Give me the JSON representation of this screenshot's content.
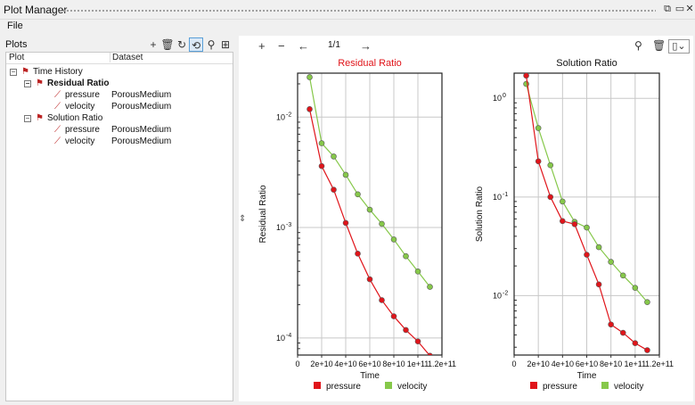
{
  "window": {
    "title": "Plot Manager"
  },
  "menu": {
    "file": "File"
  },
  "left": {
    "header": "Plots",
    "columns": {
      "plot": "Plot",
      "dataset": "Dataset"
    }
  },
  "tree": {
    "root": "Time History",
    "groups": [
      {
        "label": "Residual Ratio",
        "bold": true,
        "items": [
          {
            "label": "pressure",
            "dataset": "PorousMedium"
          },
          {
            "label": "velocity",
            "dataset": "PorousMedium"
          }
        ]
      },
      {
        "label": "Solution Ratio",
        "bold": false,
        "items": [
          {
            "label": "pressure",
            "dataset": "PorousMedium"
          },
          {
            "label": "velocity",
            "dataset": "PorousMedium"
          }
        ]
      }
    ]
  },
  "toolbar": {
    "page_indicator": "1/1"
  },
  "colors": {
    "pressure": "#e0141a",
    "velocity": "#86c84a",
    "title_red": "#e0141a"
  },
  "chart_data": [
    {
      "type": "line",
      "title": "Residual Ratio",
      "xlabel": "Time",
      "ylabel": "Residual Ratio",
      "yscale": "log",
      "xlim": [
        0,
        120000000000.0
      ],
      "ylim": [
        7e-05,
        0.025
      ],
      "xticks": [
        "0",
        "2e+10",
        "4e+10",
        "6e+10",
        "8e+10",
        "1e+11",
        "1.2e+11"
      ],
      "yticks": [
        {
          "value": 0.01,
          "label": "10",
          "exp": "-2"
        },
        {
          "value": 0.001,
          "label": "10",
          "exp": "-3"
        },
        {
          "value": 0.0001,
          "label": "10",
          "exp": "-4"
        }
      ],
      "series": [
        {
          "name": "pressure",
          "x": [
            10000000000.0,
            20000000000.0,
            30000000000.0,
            40000000000.0,
            50000000000.0,
            60000000000.0,
            70000000000.0,
            80000000000.0,
            90000000000.0,
            100000000000.0,
            110000000000.0
          ],
          "y": [
            0.0118,
            0.0036,
            0.0022,
            0.0011,
            0.00058,
            0.00034,
            0.00022,
            0.000157,
            0.000118,
            9.3e-05,
            6.9e-05
          ]
        },
        {
          "name": "velocity",
          "x": [
            10000000000.0,
            20000000000.0,
            30000000000.0,
            40000000000.0,
            50000000000.0,
            60000000000.0,
            70000000000.0,
            80000000000.0,
            90000000000.0,
            100000000000.0,
            110000000000.0
          ],
          "y": [
            0.023,
            0.0058,
            0.0044,
            0.003,
            0.002,
            0.00145,
            0.00108,
            0.00078,
            0.00055,
            0.0004,
            0.00029
          ]
        }
      ],
      "legend": "bottom"
    },
    {
      "type": "line",
      "title": "Solution Ratio",
      "xlabel": "Time",
      "ylabel": "Solution Ratio",
      "yscale": "log",
      "xlim": [
        0,
        120000000000.0
      ],
      "ylim": [
        0.0025,
        1.8
      ],
      "xticks": [
        "0",
        "2e+10",
        "4e+10",
        "6e+10",
        "8e+10",
        "1e+11",
        "1.2e+11"
      ],
      "yticks": [
        {
          "value": 1,
          "label": "10",
          "exp": "0"
        },
        {
          "value": 0.1,
          "label": "10",
          "exp": "-1"
        },
        {
          "value": 0.01,
          "label": "10",
          "exp": "-2"
        }
      ],
      "series": [
        {
          "name": "pressure",
          "x": [
            10000000000.0,
            20000000000.0,
            30000000000.0,
            40000000000.0,
            50000000000.0,
            60000000000.0,
            70000000000.0,
            80000000000.0,
            90000000000.0,
            100000000000.0,
            110000000000.0
          ],
          "y": [
            1.7,
            0.23,
            0.1,
            0.057,
            0.053,
            0.026,
            0.013,
            0.0051,
            0.0042,
            0.0033,
            0.0028
          ]
        },
        {
          "name": "velocity",
          "x": [
            10000000000.0,
            20000000000.0,
            30000000000.0,
            40000000000.0,
            50000000000.0,
            60000000000.0,
            70000000000.0,
            80000000000.0,
            90000000000.0,
            100000000000.0,
            110000000000.0
          ],
          "y": [
            1.4,
            0.5,
            0.21,
            0.09,
            0.056,
            0.049,
            0.031,
            0.022,
            0.016,
            0.012,
            0.0086
          ]
        }
      ],
      "legend": "bottom"
    }
  ]
}
